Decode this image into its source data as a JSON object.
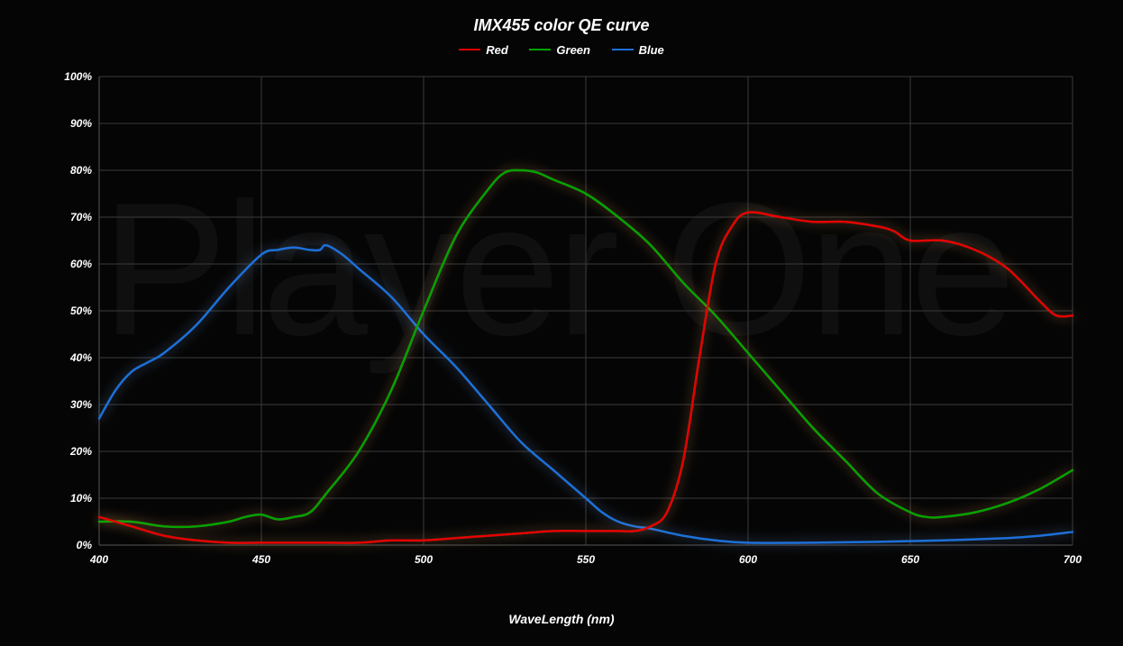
{
  "chart": {
    "type": "line",
    "title": "IMX455 color QE curve",
    "x_axis_title": "WaveLength (nm)",
    "background_color": "#050505",
    "text_color": "#ffffff",
    "title_fontsize": 18,
    "axis_title_fontsize": 14,
    "tick_fontsize": 12,
    "font_style": "italic",
    "font_weight": "bold",
    "watermark_text": "Player One",
    "watermark_color": "#111111",
    "watermark_fontsize": 210,
    "grid_color": "#3a3a3a",
    "axis_line_color": "#555555",
    "xlim": [
      400,
      700
    ],
    "ylim": [
      0,
      100
    ],
    "xtick_step": 50,
    "ytick_step": 10,
    "ytick_suffix": "%",
    "line_width": 2.5,
    "glow_blur": 6,
    "legend": [
      {
        "label": "Red",
        "color": "#e60000"
      },
      {
        "label": "Green",
        "color": "#00a300"
      },
      {
        "label": "Blue",
        "color": "#1e6fd9"
      }
    ],
    "series": {
      "red": {
        "color": "#e60000",
        "glow_color": "#ffb060",
        "x": [
          400,
          410,
          420,
          430,
          440,
          450,
          460,
          470,
          480,
          490,
          500,
          510,
          520,
          530,
          540,
          550,
          560,
          565,
          570,
          575,
          580,
          585,
          590,
          595,
          600,
          610,
          620,
          630,
          640,
          645,
          650,
          660,
          670,
          680,
          690,
          695,
          700
        ],
        "y": [
          6,
          4,
          2,
          1,
          0.5,
          0.5,
          0.5,
          0.5,
          0.5,
          1,
          1,
          1.5,
          2,
          2.5,
          3,
          3,
          3,
          3,
          4,
          7,
          18,
          40,
          60,
          68,
          71,
          70,
          69,
          69,
          68,
          67,
          65,
          65,
          63,
          59,
          52,
          49,
          49
        ]
      },
      "green": {
        "color": "#00a300",
        "glow_color": "#ffb060",
        "x": [
          400,
          410,
          420,
          430,
          440,
          445,
          450,
          455,
          460,
          465,
          470,
          480,
          490,
          500,
          510,
          520,
          525,
          530,
          535,
          540,
          550,
          560,
          570,
          580,
          590,
          600,
          610,
          620,
          630,
          640,
          650,
          655,
          660,
          670,
          680,
          690,
          700
        ],
        "y": [
          5,
          5,
          4,
          4,
          5,
          6,
          6.5,
          5.5,
          6,
          7,
          11,
          20,
          33,
          50,
          66,
          76,
          79.5,
          80,
          79.5,
          78,
          75,
          70,
          64,
          56,
          49,
          41,
          33,
          25,
          18,
          11,
          7,
          6,
          6,
          7,
          9,
          12,
          16
        ]
      },
      "blue": {
        "color": "#1e6fd9",
        "glow_color": "#7fb8ff",
        "x": [
          400,
          405,
          410,
          415,
          420,
          430,
          440,
          450,
          455,
          460,
          465,
          468,
          470,
          475,
          480,
          490,
          500,
          510,
          520,
          530,
          540,
          550,
          555,
          560,
          565,
          570,
          580,
          590,
          600,
          620,
          640,
          660,
          680,
          690,
          700
        ],
        "y": [
          27,
          33,
          37,
          39,
          41,
          47,
          55,
          62,
          63,
          63.5,
          63,
          63,
          64,
          62,
          59,
          53,
          45,
          38,
          30,
          22,
          16,
          10,
          7,
          5,
          4,
          3.5,
          2,
          1,
          0.5,
          0.5,
          0.7,
          1,
          1.5,
          2,
          2.8
        ]
      }
    }
  }
}
